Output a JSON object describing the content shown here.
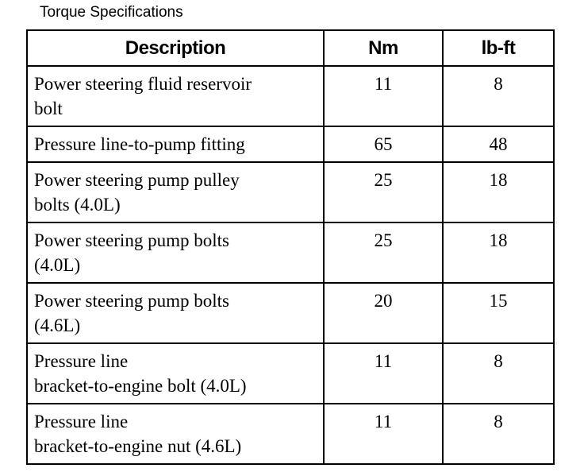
{
  "title": "Torque Specifications",
  "table": {
    "header": [
      "Description",
      "Nm",
      "lb-ft"
    ],
    "rows": [
      [
        [
          "Power steering fluid reservoir",
          "bolt"
        ],
        "11",
        "8"
      ],
      [
        [
          "Pressure line-to-pump fitting"
        ],
        "65",
        "48"
      ],
      [
        [
          "Power steering pump pulley",
          "bolts (4.0L)"
        ],
        "25",
        "18"
      ],
      [
        [
          "Power steering pump bolts",
          "(4.0L)"
        ],
        "25",
        "18"
      ],
      [
        [
          "Power steering pump bolts",
          "(4.6L)"
        ],
        "20",
        "15"
      ],
      [
        [
          "Pressure line",
          "bracket-to-engine bolt (4.0L)"
        ],
        "11",
        "8"
      ],
      [
        [
          "Pressure line",
          "bracket-to-engine nut (4.6L)"
        ],
        "11",
        "8"
      ]
    ]
  }
}
